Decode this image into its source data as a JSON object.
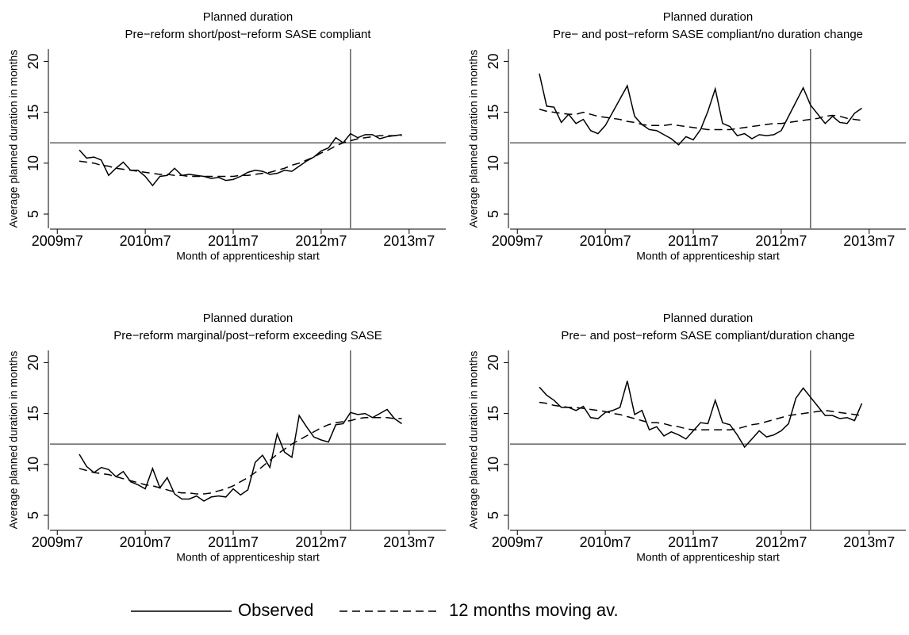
{
  "chart_data": [
    {
      "type": "line",
      "title": "Planned duration",
      "subtitle": "Pre−reform short/post−reform SASE compliant",
      "x_label": "Month of apprenticeship start",
      "y_label": "Average planned duration in months",
      "x": [
        "2009m10",
        "2009m11",
        "2009m12",
        "2010m1",
        "2010m2",
        "2010m3",
        "2010m4",
        "2010m5",
        "2010m6",
        "2010m7",
        "2010m8",
        "2010m9",
        "2010m10",
        "2010m11",
        "2010m12",
        "2011m1",
        "2011m2",
        "2011m3",
        "2011m4",
        "2011m5",
        "2011m6",
        "2011m7",
        "2011m8",
        "2011m9",
        "2011m10",
        "2011m11",
        "2011m12",
        "2012m1",
        "2012m2",
        "2012m3",
        "2012m4",
        "2012m5",
        "2012m6",
        "2012m7",
        "2012m8",
        "2012m9",
        "2012m10",
        "2012m11",
        "2012m12",
        "2013m1",
        "2013m2",
        "2013m3",
        "2013m4",
        "2013m5",
        "2013m6"
      ],
      "series": [
        {
          "name": "Observed",
          "color": "#000000",
          "dash": "solid",
          "values": [
            11.3,
            10.5,
            10.6,
            10.3,
            8.8,
            9.5,
            10.1,
            9.3,
            9.3,
            8.7,
            7.8,
            8.7,
            8.8,
            9.5,
            8.8,
            8.9,
            8.8,
            8.7,
            8.5,
            8.6,
            8.3,
            8.4,
            8.7,
            9.1,
            9.3,
            9.2,
            8.9,
            9.0,
            9.3,
            9.2,
            9.7,
            10.2,
            10.6,
            11.2,
            11.5,
            12.5,
            12.0,
            12.9,
            12.5,
            12.8,
            12.8,
            12.4,
            12.6,
            12.7,
            12.8
          ]
        },
        {
          "name": "12 months moving av.",
          "color": "#000000",
          "dash": "dashed",
          "values": [
            10.2,
            10.1,
            10.0,
            9.8,
            9.7,
            9.5,
            9.4,
            9.3,
            9.2,
            9.1,
            9.0,
            8.9,
            8.9,
            8.8,
            8.8,
            8.7,
            8.7,
            8.7,
            8.7,
            8.7,
            8.7,
            8.7,
            8.8,
            8.8,
            8.9,
            9.0,
            9.1,
            9.3,
            9.5,
            9.8,
            10.0,
            10.3,
            10.6,
            11.0,
            11.3,
            11.7,
            12.0,
            12.2,
            12.4,
            12.5,
            12.6,
            12.7,
            12.7,
            12.7,
            12.7
          ]
        }
      ],
      "xlim": [
        "2009m6",
        "2013m12"
      ],
      "xticks": [
        "2009m7",
        "2010m7",
        "2011m7",
        "2012m7",
        "2013m7"
      ],
      "ylim": [
        3.6,
        21.2
      ],
      "yticks": [
        5,
        10,
        15,
        20
      ],
      "hline": 12,
      "vline": "2012m11"
    },
    {
      "type": "line",
      "title": "Planned duration",
      "subtitle": "Pre− and post−reform SASE compliant/no duration change",
      "x_label": "Month of apprenticeship start",
      "y_label": "Average planned duration in months",
      "x": [
        "2009m10",
        "2009m11",
        "2009m12",
        "2010m1",
        "2010m2",
        "2010m3",
        "2010m4",
        "2010m5",
        "2010m6",
        "2010m7",
        "2010m8",
        "2010m9",
        "2010m10",
        "2010m11",
        "2010m12",
        "2011m1",
        "2011m2",
        "2011m3",
        "2011m4",
        "2011m5",
        "2011m6",
        "2011m7",
        "2011m8",
        "2011m9",
        "2011m10",
        "2011m11",
        "2011m12",
        "2012m1",
        "2012m2",
        "2012m3",
        "2012m4",
        "2012m5",
        "2012m6",
        "2012m7",
        "2012m8",
        "2012m9",
        "2012m10",
        "2012m11",
        "2012m12",
        "2013m1",
        "2013m2",
        "2013m3",
        "2013m4",
        "2013m5",
        "2013m6"
      ],
      "series": [
        {
          "name": "Observed",
          "color": "#000000",
          "dash": "solid",
          "values": [
            18.8,
            15.6,
            15.5,
            14.0,
            14.8,
            13.9,
            14.3,
            13.2,
            12.9,
            13.7,
            15.0,
            16.3,
            17.6,
            14.6,
            13.8,
            13.3,
            13.2,
            12.8,
            12.4,
            11.8,
            12.6,
            12.3,
            13.3,
            15.1,
            17.3,
            13.9,
            13.6,
            12.7,
            12.9,
            12.4,
            12.8,
            12.7,
            12.8,
            13.2,
            14.6,
            16.0,
            17.4,
            15.7,
            14.8,
            13.9,
            14.6,
            14.0,
            13.9,
            14.9,
            15.4
          ]
        },
        {
          "name": "12 months moving av.",
          "color": "#000000",
          "dash": "dashed",
          "values": [
            15.3,
            15.1,
            15.0,
            14.9,
            14.8,
            14.8,
            15.0,
            14.8,
            14.6,
            14.5,
            14.4,
            14.3,
            14.1,
            14.0,
            13.8,
            13.7,
            13.7,
            13.7,
            13.8,
            13.7,
            13.6,
            13.5,
            13.4,
            13.3,
            13.3,
            13.3,
            13.3,
            13.4,
            13.5,
            13.6,
            13.7,
            13.8,
            13.9,
            13.9,
            14.0,
            14.1,
            14.2,
            14.3,
            14.4,
            14.6,
            14.7,
            14.6,
            14.4,
            14.3,
            14.2
          ]
        }
      ],
      "xlim": [
        "2009m6",
        "2013m12"
      ],
      "xticks": [
        "2009m7",
        "2010m7",
        "2011m7",
        "2012m7",
        "2013m7"
      ],
      "ylim": [
        3.6,
        21.2
      ],
      "yticks": [
        5,
        10,
        15,
        20
      ],
      "hline": 12,
      "vline": "2012m11"
    },
    {
      "type": "line",
      "title": "Planned duration",
      "subtitle": "Pre−reform marginal/post−reform exceeding SASE",
      "x_label": "Month of apprenticeship start",
      "y_label": "Average planned duration in months",
      "x": [
        "2009m10",
        "2009m11",
        "2009m12",
        "2010m1",
        "2010m2",
        "2010m3",
        "2010m4",
        "2010m5",
        "2010m6",
        "2010m7",
        "2010m8",
        "2010m9",
        "2010m10",
        "2010m11",
        "2010m12",
        "2011m1",
        "2011m2",
        "2011m3",
        "2011m4",
        "2011m5",
        "2011m6",
        "2011m7",
        "2011m8",
        "2011m9",
        "2011m10",
        "2011m11",
        "2011m12",
        "2012m1",
        "2012m2",
        "2012m3",
        "2012m4",
        "2012m5",
        "2012m6",
        "2012m7",
        "2012m8",
        "2012m9",
        "2012m10",
        "2012m11",
        "2012m12",
        "2013m1",
        "2013m2",
        "2013m3",
        "2013m4",
        "2013m5",
        "2013m6"
      ],
      "series": [
        {
          "name": "Observed",
          "color": "#000000",
          "dash": "solid",
          "values": [
            11.0,
            9.8,
            9.2,
            9.7,
            9.5,
            8.8,
            9.3,
            8.3,
            8.0,
            7.6,
            9.6,
            7.7,
            8.7,
            7.1,
            6.6,
            6.6,
            6.9,
            6.4,
            6.8,
            6.9,
            6.8,
            7.6,
            7.0,
            7.5,
            10.2,
            10.9,
            9.7,
            13.0,
            11.2,
            10.7,
            14.8,
            13.7,
            12.7,
            12.4,
            12.2,
            13.9,
            14.0,
            15.1,
            14.9,
            15.0,
            14.6,
            15.0,
            15.4,
            14.5,
            14.0
          ]
        },
        {
          "name": "12 months moving av.",
          "color": "#000000",
          "dash": "dashed",
          "values": [
            9.6,
            9.4,
            9.2,
            9.1,
            9.0,
            8.8,
            8.6,
            8.4,
            8.2,
            8.0,
            7.9,
            7.7,
            7.5,
            7.3,
            7.2,
            7.2,
            7.1,
            7.1,
            7.2,
            7.4,
            7.6,
            7.9,
            8.3,
            8.7,
            9.2,
            9.8,
            10.4,
            11.0,
            11.5,
            12.0,
            12.4,
            12.8,
            13.2,
            13.6,
            13.9,
            14.1,
            14.2,
            14.3,
            14.5,
            14.6,
            14.6,
            14.6,
            14.6,
            14.5,
            14.5
          ]
        }
      ],
      "xlim": [
        "2009m6",
        "2013m12"
      ],
      "xticks": [
        "2009m7",
        "2010m7",
        "2011m7",
        "2012m7",
        "2013m7"
      ],
      "ylim": [
        3.6,
        21.2
      ],
      "yticks": [
        5,
        10,
        15,
        20
      ],
      "hline": 12,
      "vline": "2012m11"
    },
    {
      "type": "line",
      "title": "Planned duration",
      "subtitle": "Pre− and post−reform SASE compliant/duration change",
      "x_label": "Month of apprenticeship start",
      "y_label": "Average planned duration in months",
      "x": [
        "2009m10",
        "2009m11",
        "2009m12",
        "2010m1",
        "2010m2",
        "2010m3",
        "2010m4",
        "2010m5",
        "2010m6",
        "2010m7",
        "2010m8",
        "2010m9",
        "2010m10",
        "2010m11",
        "2010m12",
        "2011m1",
        "2011m2",
        "2011m3",
        "2011m4",
        "2011m5",
        "2011m6",
        "2011m7",
        "2011m8",
        "2011m9",
        "2011m10",
        "2011m11",
        "2011m12",
        "2012m1",
        "2012m2",
        "2012m3",
        "2012m4",
        "2012m5",
        "2012m6",
        "2012m7",
        "2012m8",
        "2012m9",
        "2012m10",
        "2012m11",
        "2012m12",
        "2013m1",
        "2013m2",
        "2013m3",
        "2013m4",
        "2013m5",
        "2013m6"
      ],
      "series": [
        {
          "name": "Observed",
          "color": "#000000",
          "dash": "solid",
          "values": [
            17.6,
            16.8,
            16.3,
            15.6,
            15.6,
            15.3,
            15.7,
            14.6,
            14.5,
            15.1,
            15.3,
            15.6,
            18.2,
            14.9,
            15.3,
            13.4,
            13.7,
            12.8,
            13.2,
            12.9,
            12.5,
            13.3,
            14.1,
            14.0,
            16.3,
            14.1,
            13.9,
            12.9,
            11.7,
            12.5,
            13.3,
            12.7,
            12.9,
            13.3,
            14.0,
            16.5,
            17.5,
            16.6,
            15.7,
            14.8,
            14.8,
            14.5,
            14.6,
            14.3,
            16.0
          ]
        },
        {
          "name": "12 months moving av.",
          "color": "#000000",
          "dash": "dashed",
          "values": [
            16.1,
            16.0,
            15.8,
            15.7,
            15.6,
            15.6,
            15.5,
            15.4,
            15.3,
            15.2,
            15.0,
            14.9,
            14.7,
            14.5,
            14.3,
            14.1,
            14.1,
            14.0,
            13.8,
            13.7,
            13.5,
            13.4,
            13.4,
            13.4,
            13.4,
            13.4,
            13.4,
            13.5,
            13.7,
            13.9,
            14.0,
            14.2,
            14.4,
            14.6,
            14.8,
            14.9,
            15.0,
            15.1,
            15.2,
            15.3,
            15.2,
            15.1,
            15.0,
            14.9,
            14.8
          ]
        }
      ],
      "xlim": [
        "2009m6",
        "2013m12"
      ],
      "xticks": [
        "2009m7",
        "2010m7",
        "2011m7",
        "2012m7",
        "2013m7"
      ],
      "ylim": [
        3.6,
        21.2
      ],
      "yticks": [
        5,
        10,
        15,
        20
      ],
      "hline": 12,
      "vline": "2012m11"
    }
  ]
}
